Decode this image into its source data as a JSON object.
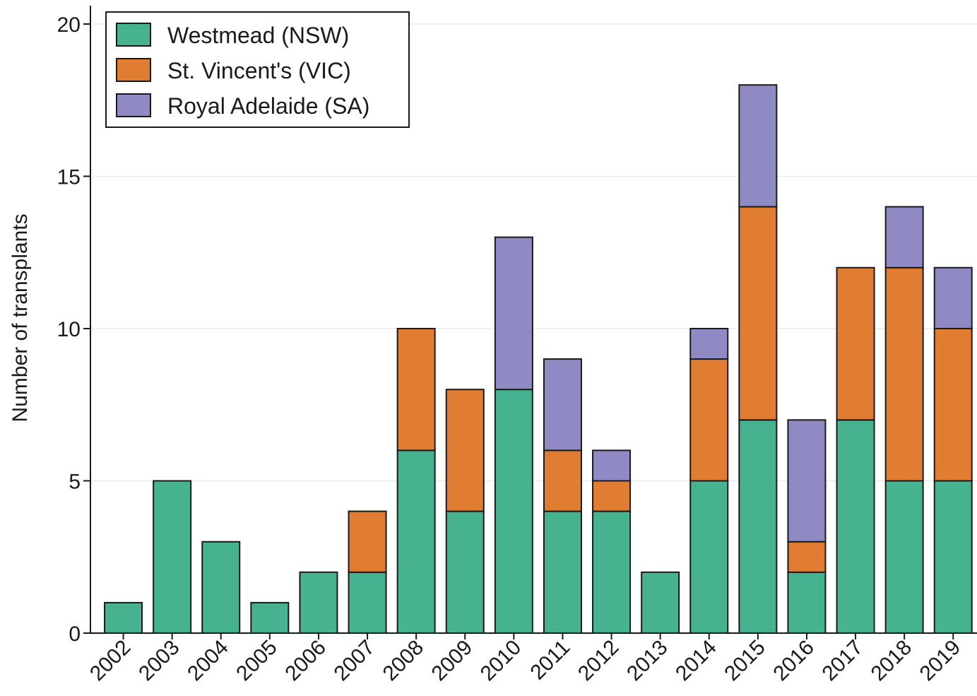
{
  "chart_data": {
    "type": "bar",
    "stacked": true,
    "title": "",
    "xlabel": "",
    "ylabel": "Number of transplants",
    "ylim": [
      0,
      20
    ],
    "yticks": [
      0,
      5,
      10,
      15,
      20
    ],
    "grid": true,
    "legend_position": "top-left",
    "categories": [
      "2002",
      "2003",
      "2004",
      "2005",
      "2006",
      "2007",
      "2008",
      "2009",
      "2010",
      "2011",
      "2012",
      "2013",
      "2014",
      "2015",
      "2016",
      "2017",
      "2018",
      "2019"
    ],
    "series": [
      {
        "name": "Westmead (NSW)",
        "color": "#47b28f",
        "values": [
          1,
          5,
          3,
          1,
          2,
          2,
          6,
          4,
          8,
          4,
          4,
          2,
          5,
          7,
          2,
          7,
          5,
          5
        ]
      },
      {
        "name": "St. Vincent's (VIC)",
        "color": "#e07d33",
        "values": [
          0,
          0,
          0,
          0,
          0,
          2,
          4,
          4,
          0,
          2,
          1,
          0,
          4,
          7,
          1,
          5,
          7,
          5
        ]
      },
      {
        "name": "Royal Adelaide (SA)",
        "color": "#8f89c4",
        "values": [
          0,
          0,
          0,
          0,
          0,
          0,
          0,
          0,
          5,
          3,
          1,
          0,
          1,
          4,
          4,
          0,
          2,
          2
        ]
      }
    ]
  }
}
